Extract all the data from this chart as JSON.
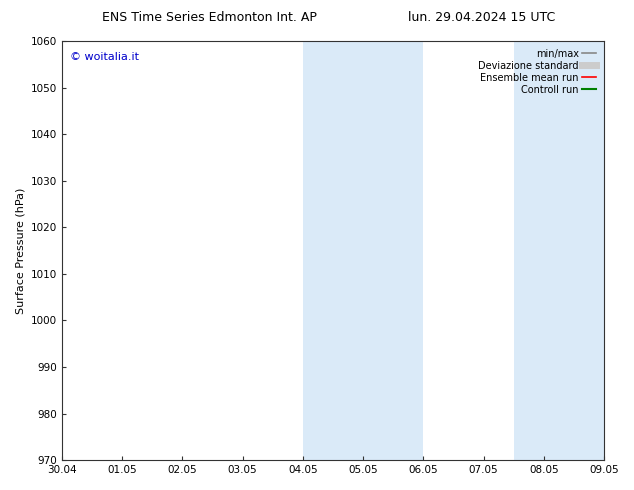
{
  "title_left": "ENS Time Series Edmonton Int. AP",
  "title_right": "lun. 29.04.2024 15 UTC",
  "ylabel": "Surface Pressure (hPa)",
  "ylim": [
    970,
    1060
  ],
  "yticks": [
    970,
    980,
    990,
    1000,
    1010,
    1020,
    1030,
    1040,
    1050,
    1060
  ],
  "xtick_labels": [
    "30.04",
    "01.05",
    "02.05",
    "03.05",
    "04.05",
    "05.05",
    "06.05",
    "07.05",
    "08.05",
    "09.05"
  ],
  "xmin": 0,
  "xmax": 9,
  "shaded_bands": [
    {
      "xstart": 4.0,
      "xend": 6.0
    },
    {
      "xstart": 7.5,
      "xend": 9.0
    }
  ],
  "band_color": "#daeaf8",
  "background_color": "#ffffff",
  "copyright_text": "© woitalia.it",
  "copyright_color": "#0000cc",
  "legend_entries": [
    {
      "label": "min/max",
      "color": "#888888",
      "lw": 1.2,
      "ls": "-",
      "type": "line"
    },
    {
      "label": "Deviazione standard",
      "color": "#cccccc",
      "lw": 5,
      "ls": "-",
      "type": "line"
    },
    {
      "label": "Ensemble mean run",
      "color": "red",
      "lw": 1.2,
      "ls": "-",
      "type": "line"
    },
    {
      "label": "Controll run",
      "color": "green",
      "lw": 1.5,
      "ls": "-",
      "type": "line"
    }
  ],
  "title_fontsize": 9,
  "axis_label_fontsize": 8,
  "tick_fontsize": 7.5,
  "legend_fontsize": 7,
  "copyright_fontsize": 8
}
